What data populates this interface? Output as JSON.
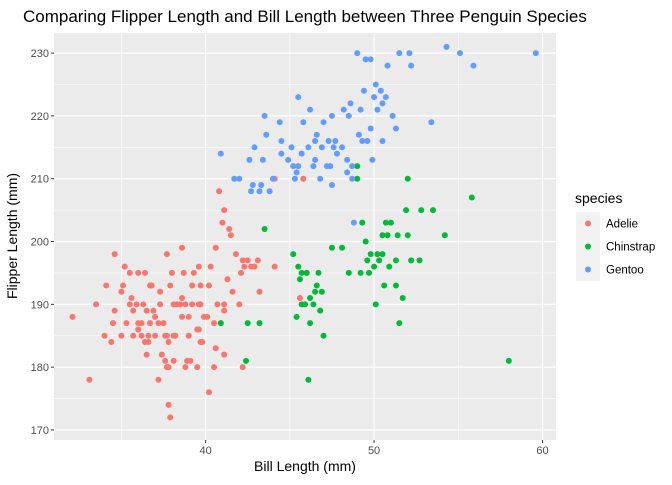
{
  "chart_data": {
    "type": "scatter",
    "title": "Comparing Flipper Length and Bill Length between Three Penguin Species",
    "xlabel": "Bill Length (mm)",
    "ylabel": "Flipper Length (mm)",
    "xlim": [
      31.0,
      60.8
    ],
    "ylim": [
      168.4,
      233.2
    ],
    "xticks": [
      40,
      50,
      60
    ],
    "yticks": [
      170,
      180,
      190,
      200,
      210,
      220,
      230
    ],
    "grid": true,
    "panel_background": "#EBEBEB",
    "grid_color": "#FFFFFF",
    "legend": {
      "title": "species",
      "position": "right",
      "background": "#F2F2F2"
    },
    "series": [
      {
        "name": "Adelie",
        "color": "#F8766D",
        "points": [
          [
            32.1,
            188
          ],
          [
            33.1,
            178
          ],
          [
            33.5,
            190
          ],
          [
            34.0,
            185
          ],
          [
            34.1,
            193
          ],
          [
            34.4,
            184
          ],
          [
            34.5,
            187
          ],
          [
            34.6,
            189
          ],
          [
            34.6,
            198
          ],
          [
            35.0,
            192
          ],
          [
            35.0,
            185
          ],
          [
            35.1,
            193
          ],
          [
            35.2,
            196
          ],
          [
            35.3,
            187
          ],
          [
            35.5,
            190
          ],
          [
            35.5,
            195
          ],
          [
            35.6,
            191
          ],
          [
            35.7,
            189
          ],
          [
            35.7,
            185
          ],
          [
            35.9,
            190
          ],
          [
            36.0,
            187
          ],
          [
            36.0,
            186
          ],
          [
            36.0,
            195
          ],
          [
            36.2,
            187
          ],
          [
            36.2,
            185
          ],
          [
            36.3,
            190
          ],
          [
            36.4,
            184
          ],
          [
            36.4,
            195
          ],
          [
            36.5,
            182
          ],
          [
            36.5,
            189
          ],
          [
            36.6,
            185
          ],
          [
            36.6,
            184
          ],
          [
            36.7,
            187
          ],
          [
            36.7,
            193
          ],
          [
            36.8,
            193
          ],
          [
            36.9,
            189
          ],
          [
            37.0,
            185
          ],
          [
            37.0,
            188
          ],
          [
            37.2,
            187
          ],
          [
            37.2,
            178
          ],
          [
            37.3,
            190
          ],
          [
            37.3,
            192
          ],
          [
            37.4,
            182
          ],
          [
            37.5,
            187
          ],
          [
            37.6,
            181
          ],
          [
            37.6,
            185
          ],
          [
            37.7,
            180
          ],
          [
            37.7,
            185
          ],
          [
            37.7,
            198
          ],
          [
            37.8,
            184
          ],
          [
            37.8,
            180
          ],
          [
            37.8,
            174
          ],
          [
            37.9,
            172
          ],
          [
            37.9,
            193
          ],
          [
            38.0,
            195
          ],
          [
            38.1,
            181
          ],
          [
            38.1,
            185
          ],
          [
            38.1,
            190
          ],
          [
            38.2,
            185
          ],
          [
            38.3,
            190
          ],
          [
            38.5,
            190
          ],
          [
            38.6,
            188
          ],
          [
            38.6,
            191
          ],
          [
            38.6,
            199
          ],
          [
            38.7,
            195
          ],
          [
            38.8,
            180
          ],
          [
            38.8,
            190
          ],
          [
            38.9,
            181
          ],
          [
            39.0,
            185
          ],
          [
            39.0,
            188
          ],
          [
            39.1,
            181
          ],
          [
            39.2,
            190
          ],
          [
            39.2,
            193
          ],
          [
            39.3,
            195
          ],
          [
            39.5,
            180
          ],
          [
            39.5,
            186
          ],
          [
            39.6,
            190
          ],
          [
            39.6,
            196
          ],
          [
            39.6,
            186
          ],
          [
            39.7,
            193
          ],
          [
            39.7,
            190
          ],
          [
            39.7,
            184
          ],
          [
            39.8,
            184
          ],
          [
            40.1,
            188
          ],
          [
            40.2,
            176
          ],
          [
            40.2,
            193
          ],
          [
            40.3,
            196
          ],
          [
            40.5,
            180
          ],
          [
            40.5,
            187
          ],
          [
            40.6,
            183
          ],
          [
            40.6,
            199
          ],
          [
            40.7,
            190
          ],
          [
            40.8,
            208
          ],
          [
            40.9,
            187
          ],
          [
            41.0,
            203
          ],
          [
            41.1,
            182
          ],
          [
            41.1,
            190
          ],
          [
            41.1,
            205
          ],
          [
            41.1,
            189
          ],
          [
            41.3,
            194
          ],
          [
            41.4,
            202
          ],
          [
            41.5,
            201
          ],
          [
            41.6,
            192
          ],
          [
            41.8,
            198
          ],
          [
            42.0,
            190
          ],
          [
            42.1,
            195
          ],
          [
            42.2,
            180
          ],
          [
            42.2,
            197
          ],
          [
            42.3,
            196
          ],
          [
            42.5,
            197
          ],
          [
            42.7,
            196
          ],
          [
            42.9,
            196
          ],
          [
            43.1,
            197
          ],
          [
            43.2,
            192
          ],
          [
            44.1,
            196
          ],
          [
            44.1,
            210
          ],
          [
            45.6,
            191
          ],
          [
            45.8,
            210
          ],
          [
            46.0,
            195
          ],
          [
            39.9,
            188
          ]
        ]
      },
      {
        "name": "Chinstrap",
        "color": "#00BA38",
        "points": [
          [
            40.9,
            187
          ],
          [
            42.4,
            181
          ],
          [
            42.5,
            187
          ],
          [
            43.2,
            187
          ],
          [
            43.5,
            202
          ],
          [
            45.2,
            198
          ],
          [
            45.4,
            188
          ],
          [
            45.5,
            196
          ],
          [
            45.6,
            194
          ],
          [
            45.7,
            195
          ],
          [
            45.7,
            190
          ],
          [
            45.9,
            190
          ],
          [
            46.0,
            195
          ],
          [
            46.1,
            178
          ],
          [
            46.2,
            187
          ],
          [
            46.2,
            191
          ],
          [
            46.4,
            190
          ],
          [
            46.5,
            192
          ],
          [
            46.6,
            193
          ],
          [
            46.7,
            195
          ],
          [
            46.8,
            189
          ],
          [
            46.9,
            192
          ],
          [
            47.0,
            185
          ],
          [
            47.5,
            199
          ],
          [
            48.1,
            199
          ],
          [
            48.5,
            195
          ],
          [
            49.0,
            210
          ],
          [
            49.2,
            195
          ],
          [
            49.3,
            203
          ],
          [
            49.5,
            200
          ],
          [
            49.6,
            197
          ],
          [
            49.7,
            195
          ],
          [
            49.8,
            198
          ],
          [
            50.0,
            196
          ],
          [
            50.1,
            190
          ],
          [
            50.2,
            198
          ],
          [
            50.3,
            197
          ],
          [
            50.5,
            201
          ],
          [
            50.6,
            193
          ],
          [
            50.7,
            203
          ],
          [
            50.8,
            201
          ],
          [
            50.9,
            196
          ],
          [
            51.0,
            203
          ],
          [
            51.3,
            193
          ],
          [
            51.4,
            201
          ],
          [
            51.5,
            187
          ],
          [
            51.7,
            191
          ],
          [
            51.9,
            205
          ],
          [
            52.0,
            201
          ],
          [
            52.0,
            210
          ],
          [
            52.2,
            197
          ],
          [
            52.7,
            197
          ],
          [
            52.8,
            205
          ],
          [
            53.5,
            205
          ],
          [
            54.2,
            201
          ],
          [
            55.8,
            207
          ],
          [
            58.0,
            181
          ],
          [
            49.0,
            212
          ],
          [
            51.3,
            197
          ],
          [
            50.5,
            198
          ]
        ]
      },
      {
        "name": "Gentoo",
        "color": "#619CFF",
        "points": [
          [
            40.9,
            214
          ],
          [
            41.7,
            210
          ],
          [
            42.0,
            210
          ],
          [
            42.6,
            213
          ],
          [
            42.7,
            208
          ],
          [
            42.8,
            209
          ],
          [
            42.9,
            215
          ],
          [
            43.2,
            208
          ],
          [
            43.3,
            209
          ],
          [
            43.4,
            213
          ],
          [
            43.5,
            220
          ],
          [
            43.6,
            217
          ],
          [
            43.8,
            208
          ],
          [
            44.0,
            210
          ],
          [
            44.4,
            219
          ],
          [
            44.5,
            214
          ],
          [
            44.9,
            213
          ],
          [
            45.1,
            215
          ],
          [
            45.2,
            212
          ],
          [
            45.3,
            210
          ],
          [
            45.4,
            211
          ],
          [
            45.5,
            223
          ],
          [
            45.5,
            212
          ],
          [
            45.7,
            214
          ],
          [
            45.8,
            219
          ],
          [
            46.1,
            215
          ],
          [
            46.2,
            221
          ],
          [
            46.4,
            212
          ],
          [
            46.5,
            216
          ],
          [
            46.6,
            217
          ],
          [
            46.8,
            210
          ],
          [
            46.9,
            215
          ],
          [
            47.2,
            212
          ],
          [
            47.3,
            216
          ],
          [
            47.4,
            212
          ],
          [
            47.5,
            220
          ],
          [
            47.6,
            215
          ],
          [
            47.7,
            216
          ],
          [
            47.8,
            214
          ],
          [
            48.1,
            215
          ],
          [
            48.2,
            221
          ],
          [
            48.4,
            213
          ],
          [
            48.5,
            220
          ],
          [
            48.6,
            222
          ],
          [
            48.7,
            210
          ],
          [
            48.8,
            203
          ],
          [
            49.0,
            230
          ],
          [
            49.1,
            217
          ],
          [
            49.2,
            221
          ],
          [
            49.3,
            216
          ],
          [
            49.4,
            224
          ],
          [
            49.5,
            229
          ],
          [
            49.6,
            216
          ],
          [
            49.8,
            229
          ],
          [
            50.0,
            223
          ],
          [
            50.1,
            225
          ],
          [
            50.2,
            221
          ],
          [
            50.4,
            224
          ],
          [
            50.5,
            222
          ],
          [
            50.7,
            223
          ],
          [
            50.8,
            228
          ],
          [
            51.1,
            220
          ],
          [
            51.3,
            218
          ],
          [
            51.5,
            230
          ],
          [
            52.1,
            230
          ],
          [
            52.2,
            228
          ],
          [
            53.4,
            219
          ],
          [
            54.3,
            231
          ],
          [
            55.1,
            230
          ],
          [
            55.9,
            228
          ],
          [
            59.6,
            230
          ],
          [
            47.0,
            219
          ],
          [
            48.4,
            211
          ],
          [
            49.8,
            218
          ],
          [
            46.5,
            213
          ],
          [
            44.5,
            216
          ],
          [
            50.5,
            216
          ],
          [
            48.7,
            212
          ],
          [
            47.5,
            209
          ],
          [
            49.9,
            213
          ]
        ]
      }
    ]
  }
}
